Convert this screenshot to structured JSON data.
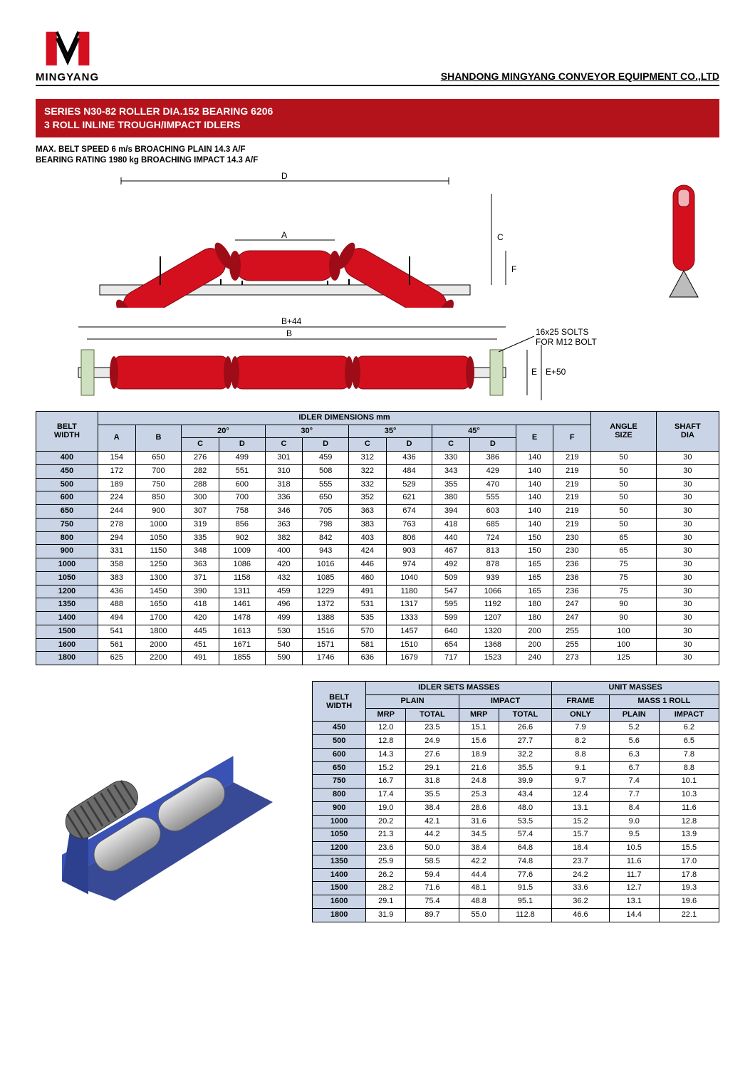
{
  "brand": {
    "name": "MINGYANG",
    "company": "SHANDONG MINGYANG CONVEYOR EQUIPMENT CO.,LTD"
  },
  "title": {
    "line1": "SERIES N30-82 ROLLER DIA.152 BEARING 6206",
    "line2": "3 ROLL INLINE TROUGH/IMPACT IDLERS"
  },
  "specs": {
    "line1": "MAX. BELT SPEED 6 m/s BROACHING PLAIN 14.3 A/F",
    "line2": "BEARING RATING 1980 kg BROACHING IMPACT 14.3 A/F"
  },
  "colors": {
    "accent": "#b5131b",
    "roller_red": "#d4101f",
    "roller_shade": "#9e0c17",
    "table_header": "#c9d5e6",
    "render_blue": "#2d3f8f",
    "render_grey": "#b8b8b8"
  },
  "diagram_labels": {
    "D": "D",
    "A": "A",
    "C": "C",
    "F": "F",
    "B": "B",
    "B44": "B+44",
    "E": "E",
    "E50": "E+50",
    "slots": "16x25 SOLTS",
    "bolt": "FOR M12 BOLT"
  },
  "t1": {
    "title": "IDLER DIMENSIONS mm",
    "hdr": {
      "belt": "BELT",
      "width": "WIDTH",
      "angle": "ANGLE",
      "size": "SIZE",
      "shaft": "SHAFT",
      "dia": "DIA",
      "A": "A",
      "B": "B",
      "C": "C",
      "D": "D",
      "E": "E",
      "F": "F",
      "a20": "20°",
      "a30": "30°",
      "a35": "35°",
      "a45": "45°"
    },
    "rows": [
      [
        "400",
        154,
        650,
        276,
        499,
        301,
        459,
        312,
        436,
        330,
        386,
        140,
        219,
        50,
        30
      ],
      [
        "450",
        172,
        700,
        282,
        551,
        310,
        508,
        322,
        484,
        343,
        429,
        140,
        219,
        50,
        30
      ],
      [
        "500",
        189,
        750,
        288,
        600,
        318,
        555,
        332,
        529,
        355,
        470,
        140,
        219,
        50,
        30
      ],
      [
        "600",
        224,
        850,
        300,
        700,
        336,
        650,
        352,
        621,
        380,
        555,
        140,
        219,
        50,
        30
      ],
      [
        "650",
        244,
        900,
        307,
        758,
        346,
        705,
        363,
        674,
        394,
        603,
        140,
        219,
        50,
        30
      ],
      [
        "750",
        278,
        1000,
        319,
        856,
        363,
        798,
        383,
        763,
        418,
        685,
        140,
        219,
        50,
        30
      ],
      [
        "800",
        294,
        1050,
        335,
        902,
        382,
        842,
        403,
        806,
        440,
        724,
        150,
        230,
        65,
        30
      ],
      [
        "900",
        331,
        1150,
        348,
        1009,
        400,
        943,
        424,
        903,
        467,
        813,
        150,
        230,
        65,
        30
      ],
      [
        "1000",
        358,
        1250,
        363,
        1086,
        420,
        1016,
        446,
        974,
        492,
        878,
        165,
        236,
        75,
        30
      ],
      [
        "1050",
        383,
        1300,
        371,
        1158,
        432,
        1085,
        460,
        1040,
        509,
        939,
        165,
        236,
        75,
        30
      ],
      [
        "1200",
        436,
        1450,
        390,
        1311,
        459,
        1229,
        491,
        1180,
        547,
        1066,
        165,
        236,
        75,
        30
      ],
      [
        "1350",
        488,
        1650,
        418,
        1461,
        496,
        1372,
        531,
        1317,
        595,
        1192,
        180,
        247,
        90,
        30
      ],
      [
        "1400",
        494,
        1700,
        420,
        1478,
        499,
        1388,
        535,
        1333,
        599,
        1207,
        180,
        247,
        90,
        30
      ],
      [
        "1500",
        541,
        1800,
        445,
        1613,
        530,
        1516,
        570,
        1457,
        640,
        1320,
        200,
        255,
        100,
        30
      ],
      [
        "1600",
        561,
        2000,
        451,
        1671,
        540,
        1571,
        581,
        1510,
        654,
        1368,
        200,
        255,
        100,
        30
      ],
      [
        "1800",
        625,
        2200,
        491,
        1855,
        590,
        1746,
        636,
        1679,
        717,
        1523,
        240,
        273,
        125,
        30
      ]
    ]
  },
  "t2": {
    "h": {
      "belt": "BELT",
      "width": "WIDTH",
      "sets": "IDLER SETS MASSES",
      "unit": "UNIT MASSES",
      "plain": "PLAIN",
      "impact": "IMPACT",
      "frame": "FRAME",
      "mass1": "MASS 1 ROLL",
      "mrp": "MRP",
      "total": "TOTAL",
      "only": "ONLY"
    },
    "rows": [
      [
        "450",
        "12.0",
        "23.5",
        "15.1",
        "26.6",
        "7.9",
        "5.2",
        "6.2"
      ],
      [
        "500",
        "12.8",
        "24.9",
        "15.6",
        "27.7",
        "8.2",
        "5.6",
        "6.5"
      ],
      [
        "600",
        "14.3",
        "27.6",
        "18.9",
        "32.2",
        "8.8",
        "6.3",
        "7.8"
      ],
      [
        "650",
        "15.2",
        "29.1",
        "21.6",
        "35.5",
        "9.1",
        "6.7",
        "8.8"
      ],
      [
        "750",
        "16.7",
        "31.8",
        "24.8",
        "39.9",
        "9.7",
        "7.4",
        "10.1"
      ],
      [
        "800",
        "17.4",
        "35.5",
        "25.3",
        "43.4",
        "12.4",
        "7.7",
        "10.3"
      ],
      [
        "900",
        "19.0",
        "38.4",
        "28.6",
        "48.0",
        "13.1",
        "8.4",
        "11.6"
      ],
      [
        "1000",
        "20.2",
        "42.1",
        "31.6",
        "53.5",
        "15.2",
        "9.0",
        "12.8"
      ],
      [
        "1050",
        "21.3",
        "44.2",
        "34.5",
        "57.4",
        "15.7",
        "9.5",
        "13.9"
      ],
      [
        "1200",
        "23.6",
        "50.0",
        "38.4",
        "64.8",
        "18.4",
        "10.5",
        "15.5"
      ],
      [
        "1350",
        "25.9",
        "58.5",
        "42.2",
        "74.8",
        "23.7",
        "11.6",
        "17.0"
      ],
      [
        "1400",
        "26.2",
        "59.4",
        "44.4",
        "77.6",
        "24.2",
        "11.7",
        "17.8"
      ],
      [
        "1500",
        "28.2",
        "71.6",
        "48.1",
        "91.5",
        "33.6",
        "12.7",
        "19.3"
      ],
      [
        "1600",
        "29.1",
        "75.4",
        "48.8",
        "95.1",
        "36.2",
        "13.1",
        "19.6"
      ],
      [
        "1800",
        "31.9",
        "89.7",
        "55.0",
        "112.8",
        "46.6",
        "14.4",
        "22.1"
      ]
    ]
  }
}
